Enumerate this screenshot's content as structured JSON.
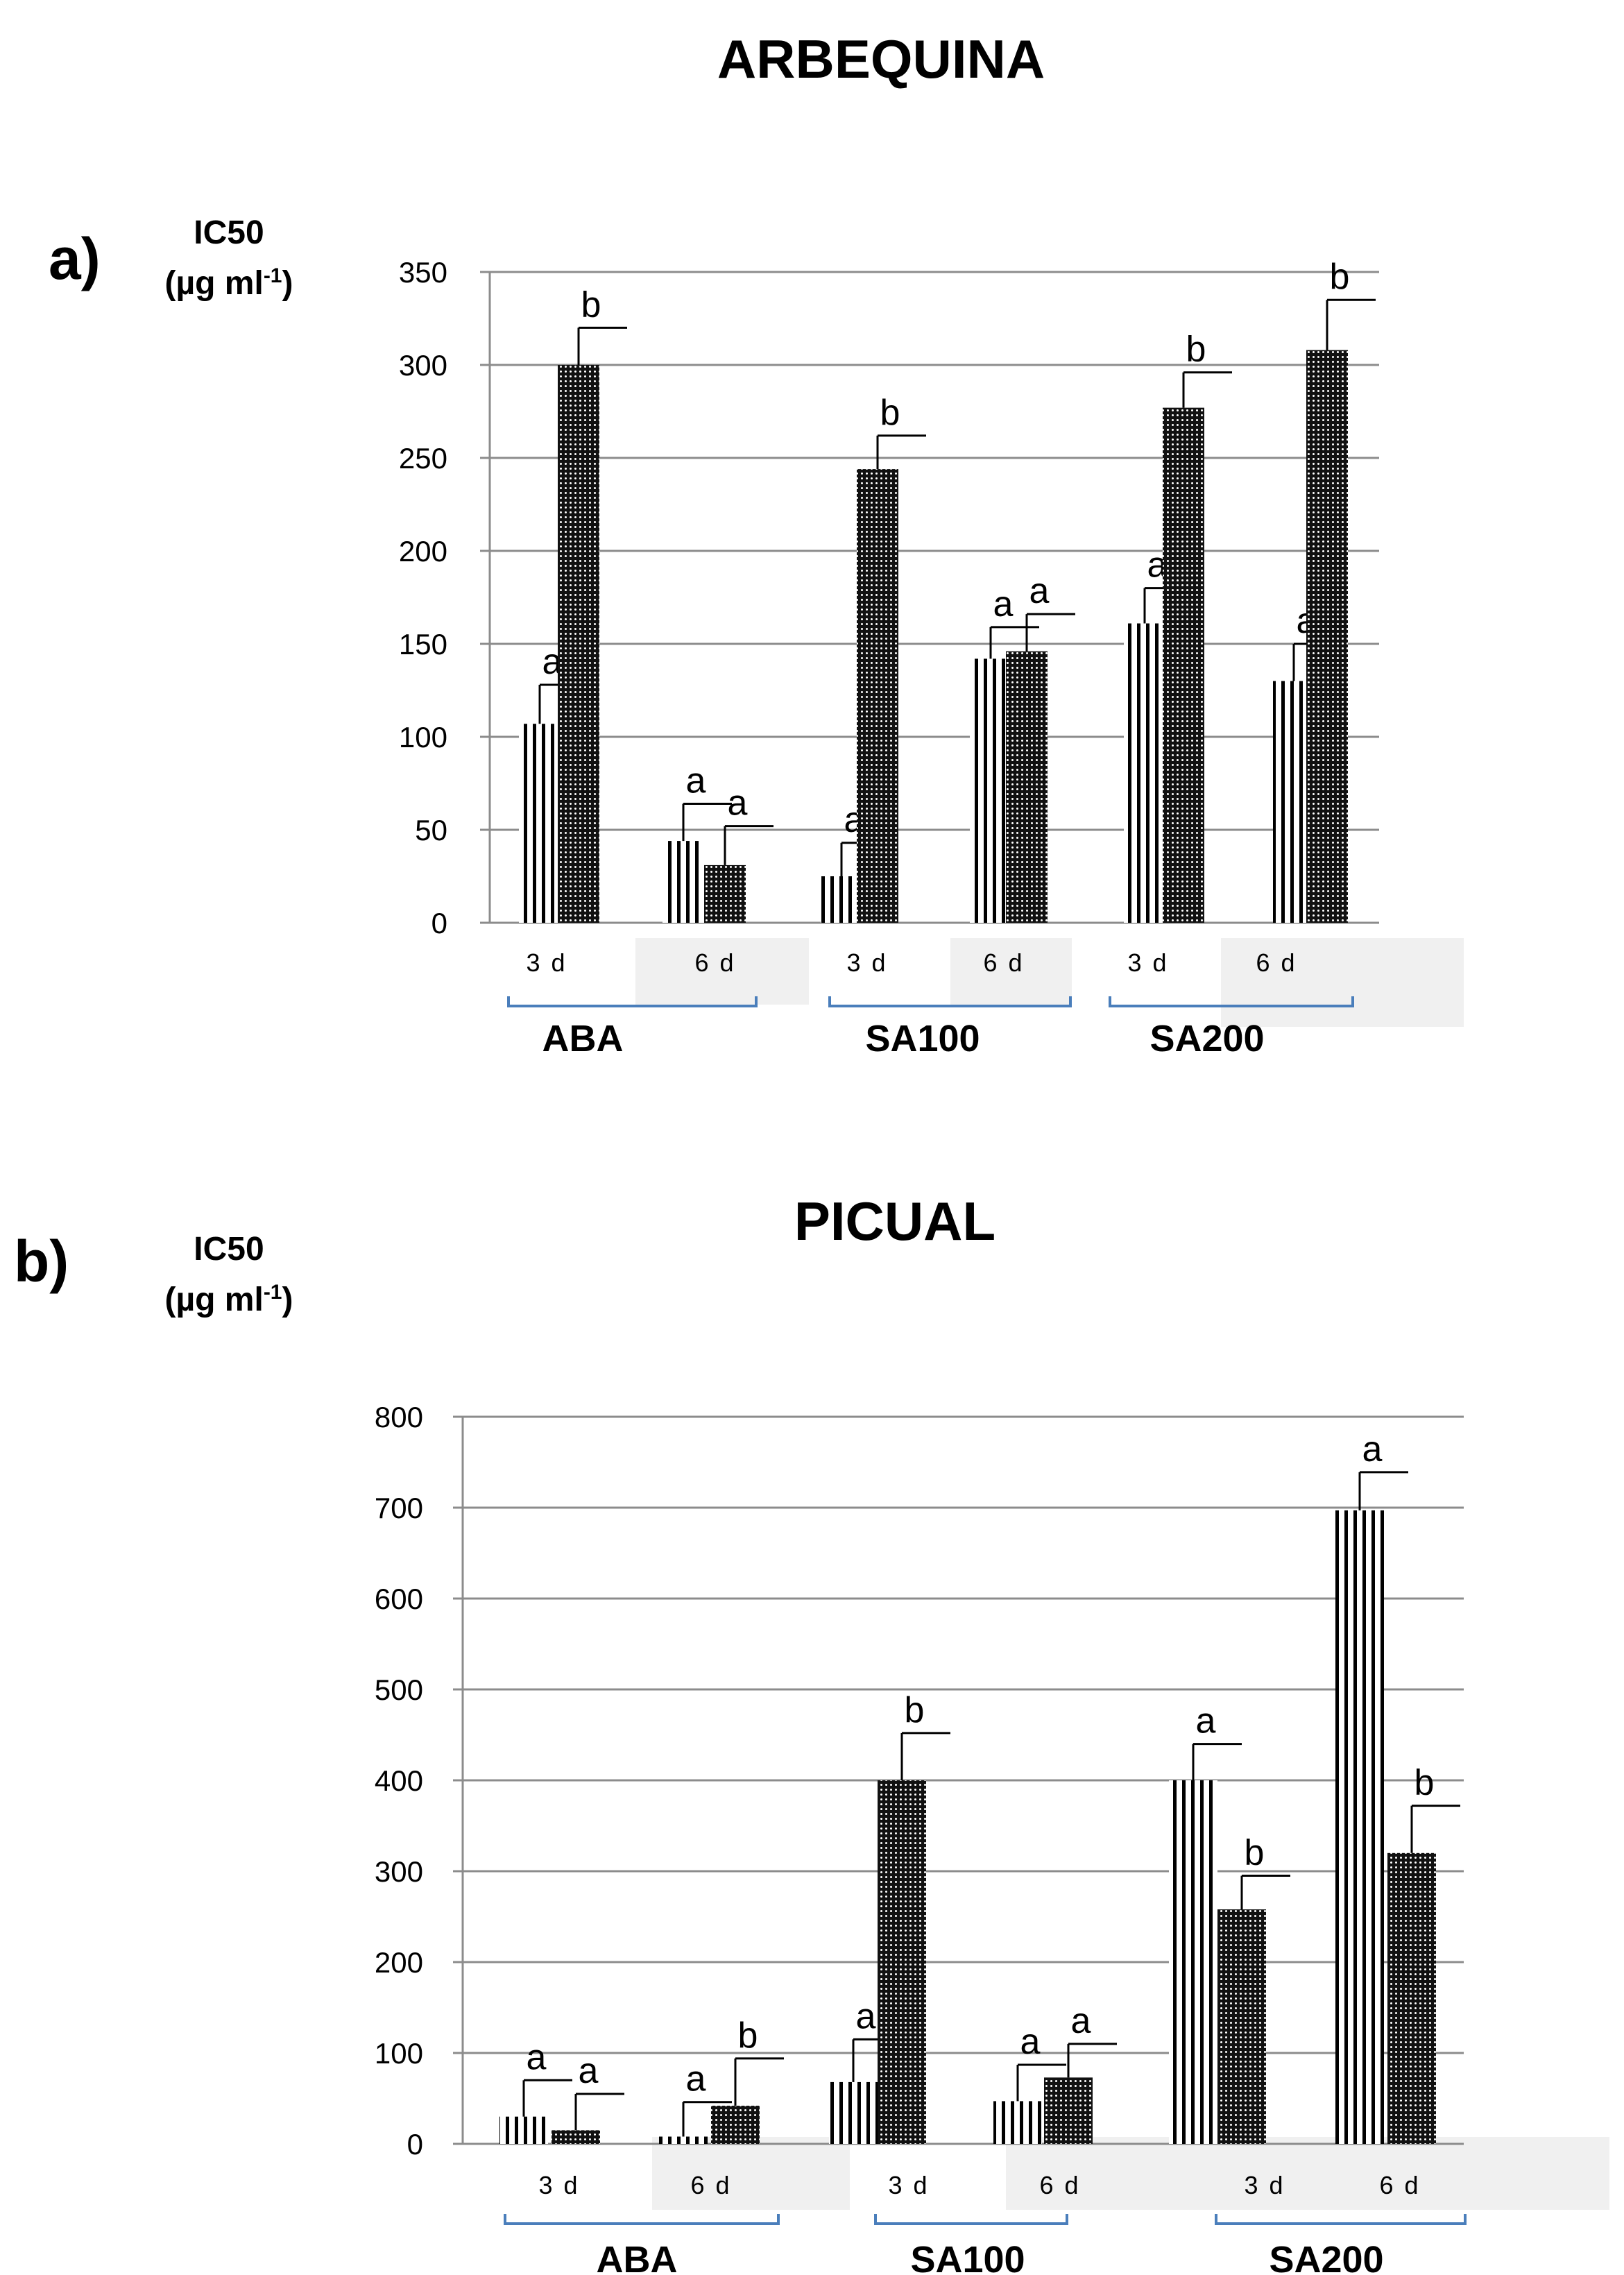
{
  "chart_data": [
    {
      "type": "bar",
      "panel": "a)",
      "title": "ARBEQUINA",
      "ylabel": "IC50",
      "yunit_base": "(µg ml",
      "yunit_sup": "-1",
      "yunit_end": ")",
      "ylim": [
        0,
        350
      ],
      "yticks": [
        "0",
        "50",
        "100",
        "150",
        "200",
        "250",
        "300",
        "350"
      ],
      "grid": true,
      "groups": [
        "ABA",
        "SA100",
        "SA200"
      ],
      "days": [
        "3 d",
        "6 d"
      ],
      "bars": [
        {
          "group": "ABA",
          "day": "3 d",
          "pattern": "stripes",
          "value": 107,
          "error": 21,
          "letter": "a"
        },
        {
          "group": "ABA",
          "day": "3 d",
          "pattern": "dots",
          "value": 300,
          "error": 20,
          "letter": "b"
        },
        {
          "group": "ABA",
          "day": "6 d",
          "pattern": "stripes",
          "value": 44,
          "error": 20,
          "letter": "a"
        },
        {
          "group": "ABA",
          "day": "6 d",
          "pattern": "dots",
          "value": 31,
          "error": 21,
          "letter": "a"
        },
        {
          "group": "SA100",
          "day": "3 d",
          "pattern": "stripes",
          "value": 25,
          "error": 18,
          "letter": "a"
        },
        {
          "group": "SA100",
          "day": "3 d",
          "pattern": "dots",
          "value": 244,
          "error": 18,
          "letter": "b"
        },
        {
          "group": "SA100",
          "day": "6 d",
          "pattern": "stripes",
          "value": 142,
          "error": 17,
          "letter": "a"
        },
        {
          "group": "SA100",
          "day": "6 d",
          "pattern": "dots",
          "value": 146,
          "error": 20,
          "letter": "a"
        },
        {
          "group": "SA200",
          "day": "3 d",
          "pattern": "stripes",
          "value": 161,
          "error": 19,
          "letter": "a"
        },
        {
          "group": "SA200",
          "day": "3 d",
          "pattern": "dots",
          "value": 277,
          "error": 19,
          "letter": "b"
        },
        {
          "group": "SA200",
          "day": "6 d",
          "pattern": "stripes",
          "value": 130,
          "error": 20,
          "letter": "a"
        },
        {
          "group": "SA200",
          "day": "6 d",
          "pattern": "dots",
          "value": 308,
          "error": 27,
          "letter": "b"
        }
      ]
    },
    {
      "type": "bar",
      "panel": "b)",
      "title": "PICUAL",
      "ylabel": "IC50",
      "yunit_base": "(µg ml",
      "yunit_sup": "-1",
      "yunit_end": ")",
      "ylim": [
        0,
        800
      ],
      "yticks": [
        "0",
        "100",
        "200",
        "300",
        "400",
        "500",
        "600",
        "700",
        "800"
      ],
      "grid": true,
      "groups": [
        "ABA",
        "SA100",
        "SA200"
      ],
      "days": [
        "3 d",
        "6 d"
      ],
      "bars": [
        {
          "group": "ABA",
          "day": "3 d",
          "pattern": "stripes",
          "value": 30,
          "error": 40,
          "letter": "a"
        },
        {
          "group": "ABA",
          "day": "3 d",
          "pattern": "dots",
          "value": 15,
          "error": 40,
          "letter": "a"
        },
        {
          "group": "ABA",
          "day": "6 d",
          "pattern": "stripes",
          "value": 8,
          "error": 38,
          "letter": "a"
        },
        {
          "group": "ABA",
          "day": "6 d",
          "pattern": "dots",
          "value": 42,
          "error": 52,
          "letter": "b"
        },
        {
          "group": "SA100",
          "day": "3 d",
          "pattern": "stripes",
          "value": 68,
          "error": 47,
          "letter": "a"
        },
        {
          "group": "SA100",
          "day": "3 d",
          "pattern": "dots",
          "value": 400,
          "error": 52,
          "letter": "b"
        },
        {
          "group": "SA100",
          "day": "6 d",
          "pattern": "stripes",
          "value": 47,
          "error": 40,
          "letter": "a"
        },
        {
          "group": "SA100",
          "day": "6 d",
          "pattern": "dots",
          "value": 73,
          "error": 37,
          "letter": "a"
        },
        {
          "group": "SA200",
          "day": "3 d",
          "pattern": "stripes",
          "value": 400,
          "error": 40,
          "letter": "a"
        },
        {
          "group": "SA200",
          "day": "3 d",
          "pattern": "dots",
          "value": 258,
          "error": 37,
          "letter": "b"
        },
        {
          "group": "SA200",
          "day": "6 d",
          "pattern": "stripes",
          "value": 697,
          "error": 42,
          "letter": "a"
        },
        {
          "group": "SA200",
          "day": "6 d",
          "pattern": "dots",
          "value": 320,
          "error": 52,
          "letter": "b"
        }
      ]
    }
  ]
}
